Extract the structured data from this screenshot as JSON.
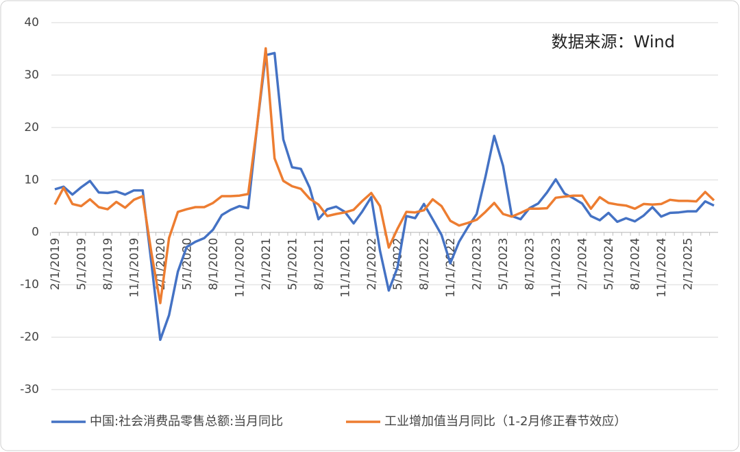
{
  "chart_data": {
    "type": "line",
    "annotation": "数据来源：Wind",
    "categories": [
      "2/1/2019",
      null,
      null,
      "5/1/2019",
      null,
      null,
      "8/1/2019",
      null,
      null,
      "11/1/2019",
      null,
      null,
      "2/1/2020",
      null,
      null,
      "5/1/2020",
      null,
      null,
      "8/1/2020",
      null,
      null,
      "11/1/2020",
      null,
      null,
      "2/1/2021",
      null,
      null,
      "5/1/2021",
      null,
      null,
      "8/1/2021",
      null,
      null,
      "11/1/2021",
      null,
      null,
      "2/1/2022",
      null,
      null,
      "5/1/2022",
      null,
      null,
      "8/1/2022",
      null,
      null,
      "11/1/2022",
      null,
      null,
      "2/1/2023",
      null,
      null,
      "5/1/2023",
      null,
      null,
      "8/1/2023",
      null,
      null,
      "11/1/2023",
      null,
      null,
      "2/1/2024",
      null,
      null,
      "5/1/2024",
      null,
      null,
      "8/1/2024",
      null,
      null,
      "11/1/2024",
      null,
      null,
      "2/1/2025",
      null,
      null,
      null
    ],
    "series": [
      {
        "name": "中国:社会消费品零售总额:当月同比",
        "color": "#4472c4",
        "values": [
          8.2,
          8.7,
          7.2,
          8.6,
          9.8,
          7.6,
          7.5,
          7.8,
          7.2,
          8.0,
          8.0,
          -6,
          -20.5,
          -15.8,
          -7.5,
          -2.8,
          -1.8,
          -1.1,
          0.5,
          3.3,
          4.3,
          5.0,
          4.6,
          20,
          33.8,
          34.2,
          17.7,
          12.4,
          12.1,
          8.5,
          2.5,
          4.4,
          4.9,
          3.9,
          1.7,
          4.0,
          6.7,
          -3.5,
          -11.1,
          -6.7,
          3.1,
          2.7,
          5.4,
          2.5,
          -0.5,
          -5.9,
          -1.8,
          1,
          3.5,
          10.6,
          18.4,
          12.7,
          3.1,
          2.5,
          4.6,
          5.5,
          7.6,
          10.1,
          7.4,
          6.5,
          5.5,
          3.1,
          2.3,
          3.7,
          2.0,
          2.7,
          2.1,
          3.2,
          4.8,
          3.0,
          3.7,
          3.8,
          4.0,
          4.0,
          5.9,
          5.1
        ]
      },
      {
        "name": "工业增加值当月同比（1-2月修正春节效应）",
        "color": "#ed7d31",
        "values": [
          5.3,
          8.5,
          5.4,
          5.0,
          6.3,
          4.8,
          4.4,
          5.8,
          4.7,
          6.2,
          6.9,
          -4,
          -13.5,
          -1.1,
          3.9,
          4.4,
          4.8,
          4.8,
          5.6,
          6.9,
          6.9,
          7.0,
          7.3,
          20,
          35.1,
          14.1,
          9.8,
          8.8,
          8.3,
          6.4,
          5.3,
          3.1,
          3.5,
          3.8,
          4.3,
          6.0,
          7.5,
          5.0,
          -2.9,
          0.7,
          3.9,
          3.8,
          4.2,
          6.3,
          5.0,
          2.2,
          1.3,
          1.8,
          2.4,
          3.9,
          5.6,
          3.5,
          3.0,
          3.7,
          4.5,
          4.5,
          4.6,
          6.6,
          6.8,
          7.0,
          7.0,
          4.5,
          6.7,
          5.6,
          5.3,
          5.1,
          4.5,
          5.4,
          5.3,
          5.4,
          6.2,
          6.0,
          6.0,
          5.9,
          7.7,
          6.1
        ]
      }
    ],
    "ylim": [
      -30,
      40
    ],
    "yticks": [
      -30,
      -20,
      -10,
      0,
      10,
      20,
      30,
      40
    ],
    "grid": true
  }
}
